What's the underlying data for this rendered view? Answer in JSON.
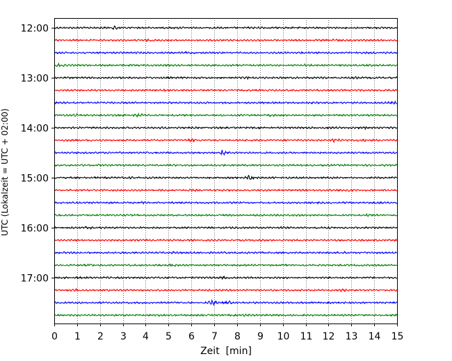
{
  "chart_data": {
    "type": "line",
    "title": "",
    "xlabel": "Zeit  [min]",
    "ylabel": "UTC (Lokalzeit = UTC + 02:00)",
    "xlim": [
      0,
      15
    ],
    "x_ticks": [
      0,
      1,
      2,
      3,
      4,
      5,
      6,
      7,
      8,
      9,
      10,
      11,
      12,
      13,
      14,
      15
    ],
    "x_tick_labels": [
      "0",
      "1",
      "2",
      "3",
      "4",
      "5",
      "6",
      "7",
      "8",
      "9",
      "10",
      "11",
      "12",
      "13",
      "14",
      "15"
    ],
    "y_tick_labels": [
      "12:00",
      "13:00",
      "14:00",
      "15:00",
      "16:00",
      "17:00"
    ],
    "y_tick_trace_index": [
      0,
      4,
      8,
      12,
      16,
      20
    ],
    "trace_minutes": 15,
    "vertical_grid": "dotted",
    "color_cycle": [
      "#000000",
      "#ff0000",
      "#0000ff",
      "#008000"
    ],
    "series": [
      {
        "start": "12:00",
        "bursts": [
          {
            "t": 2.7,
            "a": 1.8
          },
          {
            "t": 5.3,
            "a": 1.3
          },
          {
            "t": 9.2,
            "a": 1.2
          }
        ]
      },
      {
        "start": "12:15",
        "bursts": [
          {
            "t": 4.1,
            "a": 1.2
          },
          {
            "t": 12.3,
            "a": 1.4
          },
          {
            "t": 13.5,
            "a": 1.2
          }
        ]
      },
      {
        "start": "12:30",
        "bursts": [
          {
            "t": 5.8,
            "a": 1.2
          },
          {
            "t": 10.9,
            "a": 1.2
          }
        ]
      },
      {
        "start": "12:45",
        "bursts": [
          {
            "t": 0.2,
            "a": 1.6
          },
          {
            "t": 11.0,
            "a": 1.2
          },
          {
            "t": 13.8,
            "a": 1.2
          }
        ]
      },
      {
        "start": "13:00",
        "bursts": [
          {
            "t": 8.5,
            "a": 1.4
          },
          {
            "t": 13.2,
            "a": 1.2
          }
        ]
      },
      {
        "start": "13:15",
        "bursts": [
          {
            "t": 4.9,
            "a": 1.3
          },
          {
            "t": 10.3,
            "a": 1.2
          }
        ]
      },
      {
        "start": "13:30",
        "bursts": [
          {
            "t": 2.0,
            "a": 1.2
          },
          {
            "t": 14.9,
            "a": 1.4
          }
        ]
      },
      {
        "start": "13:45",
        "bursts": [
          {
            "t": 1.0,
            "a": 1.4
          },
          {
            "t": 3.7,
            "a": 1.8
          },
          {
            "t": 9.5,
            "a": 1.2
          }
        ]
      },
      {
        "start": "14:00",
        "bursts": [
          {
            "t": 4.6,
            "a": 1.2
          },
          {
            "t": 12.2,
            "a": 1.2
          },
          {
            "t": 13.6,
            "a": 1.4
          }
        ]
      },
      {
        "start": "14:15",
        "bursts": [
          {
            "t": 6.0,
            "a": 1.5
          },
          {
            "t": 12.3,
            "a": 2.1
          },
          {
            "t": 13.4,
            "a": 1.5
          }
        ]
      },
      {
        "start": "14:30",
        "bursts": [
          {
            "t": 4.5,
            "a": 1.2
          },
          {
            "t": 7.4,
            "a": 2.3
          }
        ]
      },
      {
        "start": "14:45",
        "bursts": [
          {
            "t": 1.9,
            "a": 1.2
          },
          {
            "t": 14.5,
            "a": 1.2
          }
        ]
      },
      {
        "start": "15:00",
        "bursts": [
          {
            "t": 3.4,
            "a": 1.2
          },
          {
            "t": 8.6,
            "a": 2.2
          }
        ]
      },
      {
        "start": "15:15",
        "bursts": [
          {
            "t": 6.1,
            "a": 1.2
          },
          {
            "t": 12.8,
            "a": 1.6
          }
        ]
      },
      {
        "start": "15:30",
        "bursts": [
          {
            "t": 3.8,
            "a": 1.3
          },
          {
            "t": 14.3,
            "a": 1.3
          }
        ]
      },
      {
        "start": "15:45",
        "bursts": [
          {
            "t": 2.1,
            "a": 1.2
          },
          {
            "t": 13.8,
            "a": 1.4
          }
        ]
      },
      {
        "start": "16:00",
        "bursts": [
          {
            "t": 1.5,
            "a": 1.3
          },
          {
            "t": 9.9,
            "a": 1.2
          },
          {
            "t": 11.9,
            "a": 1.2
          }
        ]
      },
      {
        "start": "16:15",
        "bursts": [
          {
            "t": 2.3,
            "a": 1.2
          },
          {
            "t": 8.8,
            "a": 1.2
          }
        ]
      },
      {
        "start": "16:30",
        "bursts": [
          {
            "t": 5.2,
            "a": 1.2
          },
          {
            "t": 12.8,
            "a": 1.3
          }
        ]
      },
      {
        "start": "16:45",
        "bursts": [
          {
            "t": 1.6,
            "a": 1.4
          },
          {
            "t": 5.2,
            "a": 1.6
          }
        ]
      },
      {
        "start": "17:00",
        "bursts": [
          {
            "t": 1.1,
            "a": 1.3
          },
          {
            "t": 7.4,
            "a": 1.3
          }
        ]
      },
      {
        "start": "17:15",
        "bursts": [
          {
            "t": 0.9,
            "a": 1.4
          },
          {
            "t": 12.6,
            "a": 1.6
          }
        ]
      },
      {
        "start": "17:30",
        "bursts": [
          {
            "t": 6.9,
            "a": 2.2
          },
          {
            "t": 7.6,
            "a": 1.6
          }
        ]
      },
      {
        "start": "17:45",
        "bursts": [
          {
            "t": 4.7,
            "a": 1.3
          },
          {
            "t": 8.4,
            "a": 1.2
          }
        ]
      }
    ]
  }
}
